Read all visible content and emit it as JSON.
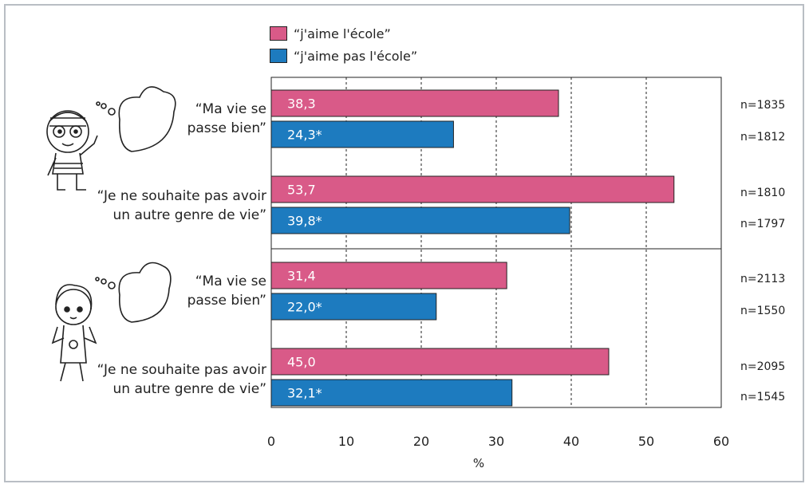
{
  "legend": [
    {
      "label": "“j'aime l'école”",
      "color": "#d95a88"
    },
    {
      "label": "“j'aime pas l'école”",
      "color": "#1d7bbf"
    }
  ],
  "chart_data": {
    "type": "bar",
    "orientation": "horizontal",
    "xlabel": "%",
    "xlim": [
      0,
      60
    ],
    "xticks": [
      0,
      10,
      20,
      30,
      40,
      50,
      60
    ],
    "grid": "vertical dashed",
    "series_names": [
      "“j'aime l'école”",
      "“j'aime pas l'école”"
    ],
    "groups": [
      {
        "label_lines": [
          "“Ma vie se",
          "passe bien”"
        ],
        "bars": [
          {
            "series": 0,
            "value": 38.3,
            "label": "38,3",
            "n": "n=1835"
          },
          {
            "series": 1,
            "value": 24.3,
            "label": "24,3*",
            "n": "n=1812"
          }
        ]
      },
      {
        "label_lines": [
          "“Je ne souhaite pas avoir",
          "un autre genre de vie”"
        ],
        "bars": [
          {
            "series": 0,
            "value": 53.7,
            "label": "53,7",
            "n": "n=1810"
          },
          {
            "series": 1,
            "value": 39.8,
            "label": "39,8*",
            "n": "n=1797"
          }
        ]
      },
      {
        "label_lines": [
          "“Ma vie se",
          "passe bien”"
        ],
        "bars": [
          {
            "series": 0,
            "value": 31.4,
            "label": "31,4",
            "n": "n=2113"
          },
          {
            "series": 1,
            "value": 22.0,
            "label": "22,0*",
            "n": "n=1550"
          }
        ]
      },
      {
        "label_lines": [
          "“Je ne souhaite pas avoir",
          "un autre genre de vie”"
        ],
        "bars": [
          {
            "series": 0,
            "value": 45.0,
            "label": "45,0",
            "n": "n=2095"
          },
          {
            "series": 1,
            "value": 32.1,
            "label": "32,1*",
            "n": "n=1545"
          }
        ]
      }
    ]
  },
  "illustrations": [
    {
      "icon": "boy-thinking-icon"
    },
    {
      "icon": "girl-thinking-icon"
    }
  ]
}
